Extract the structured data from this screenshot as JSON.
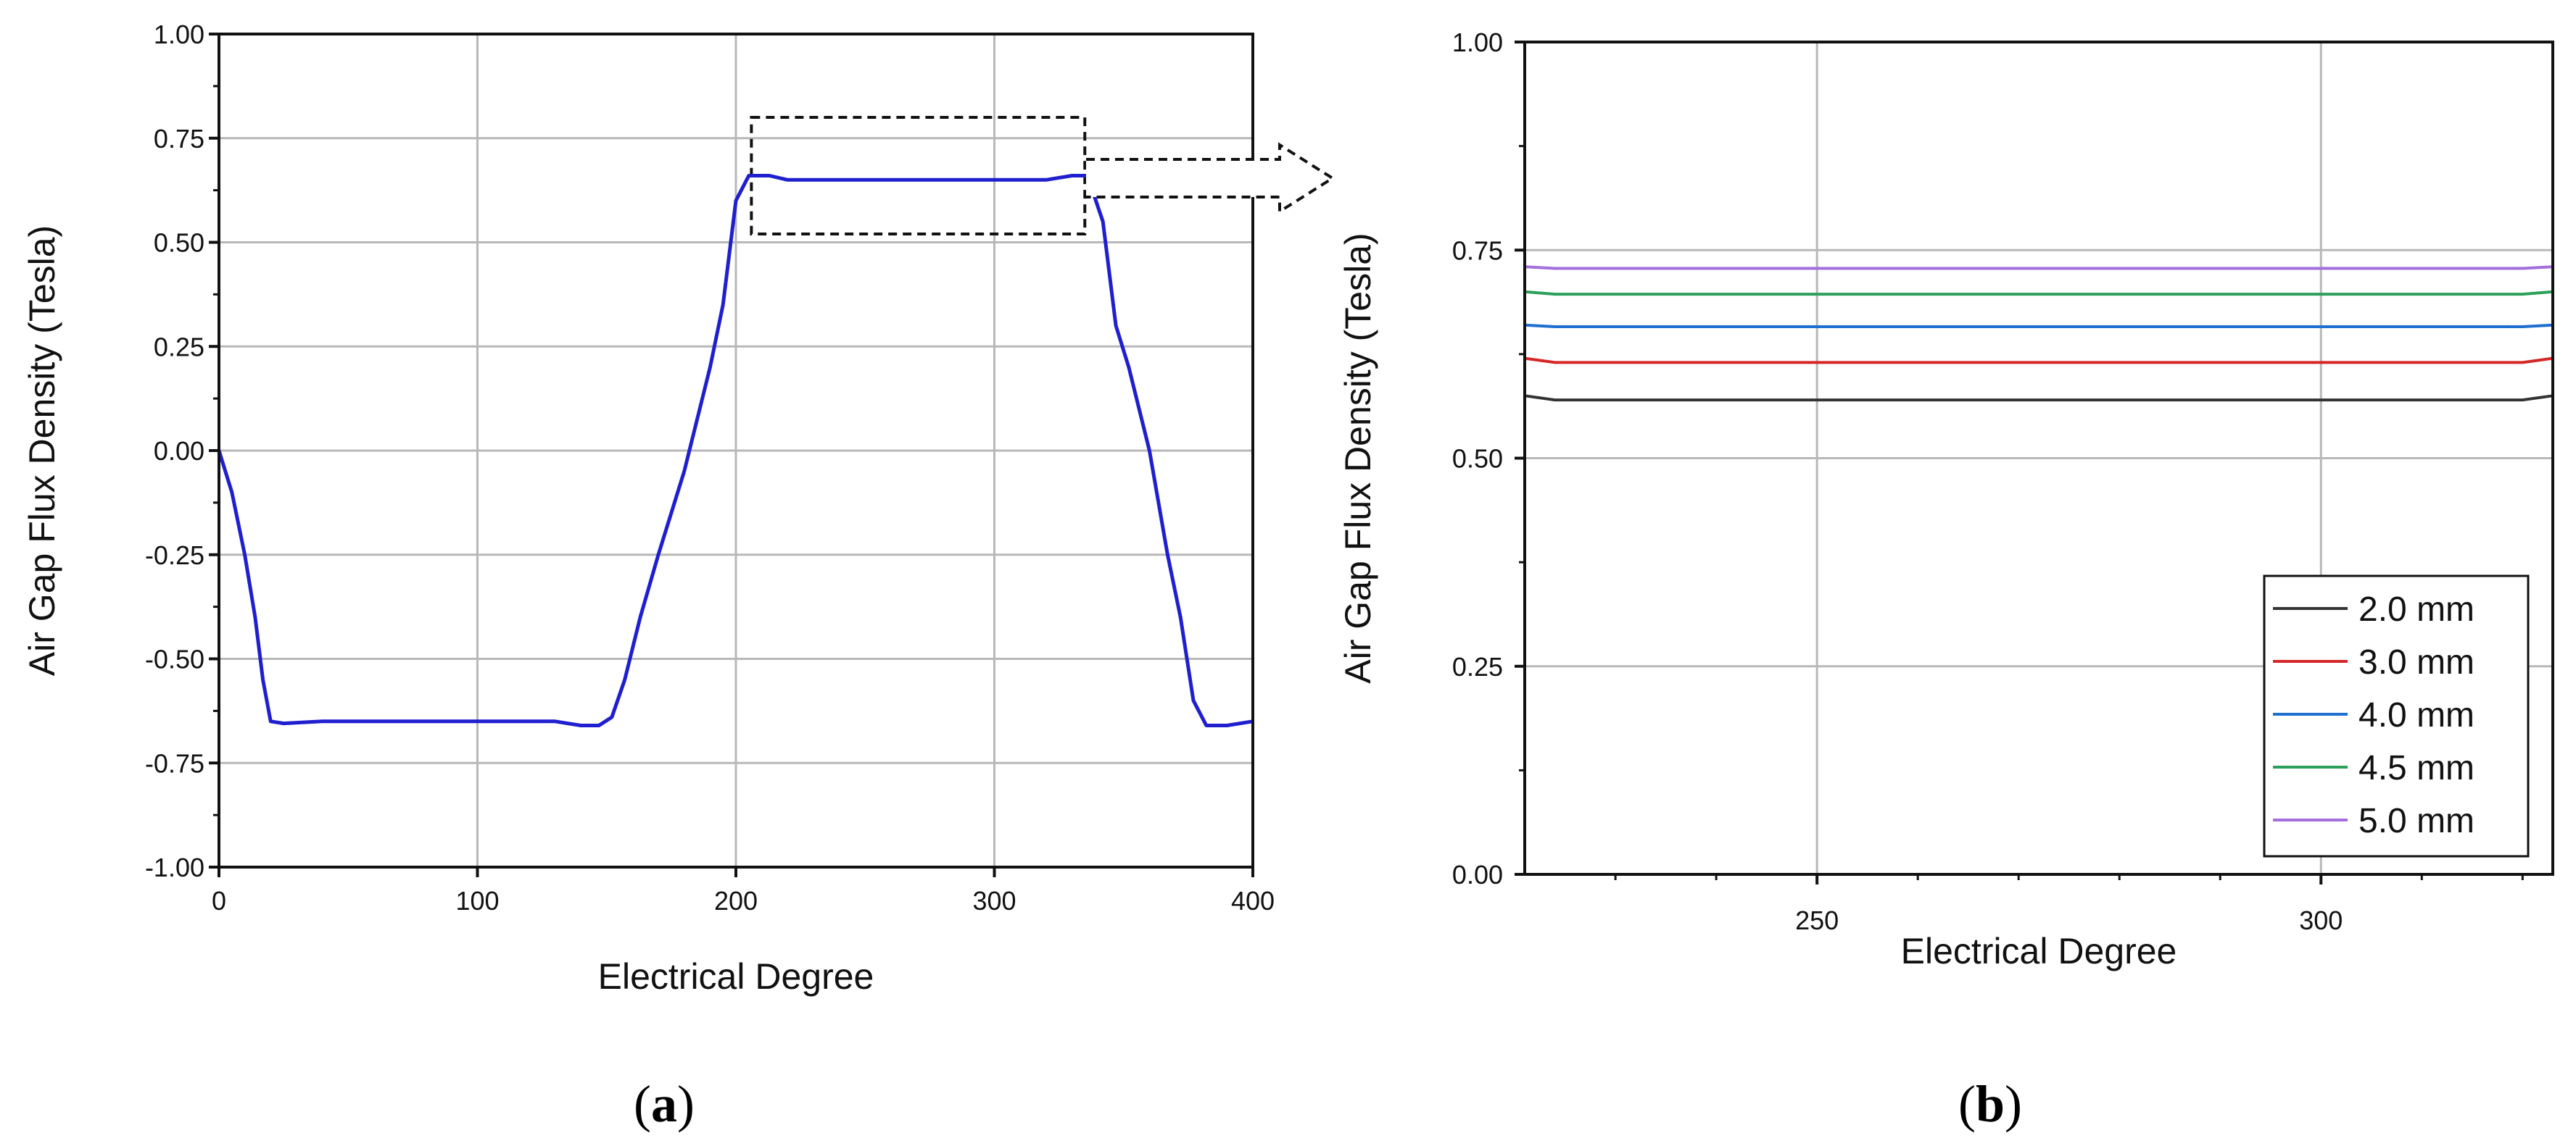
{
  "panels": {
    "a_label_open": "(",
    "a_label_letter": "a",
    "a_label_close": ")",
    "b_label_open": "(",
    "b_label_letter": "b",
    "b_label_close": ")"
  },
  "chart_data": [
    {
      "id": "a",
      "type": "line",
      "xlabel": "Electrical Degree",
      "ylabel": "Air Gap Flux Density (Tesla)",
      "xlim": [
        0,
        400
      ],
      "ylim": [
        -1.0,
        1.0
      ],
      "xticks": [
        0,
        100,
        200,
        300,
        400
      ],
      "xtick_labels": [
        "0",
        "100",
        "200",
        "300",
        "400"
      ],
      "yticks": [
        -1.0,
        -0.75,
        -0.5,
        -0.25,
        0.0,
        0.25,
        0.5,
        0.75,
        1.0
      ],
      "ytick_labels": [
        "-1.00",
        "-0.75",
        "-0.50",
        "-0.25",
        "0.00",
        "0.25",
        "0.50",
        "0.75",
        "1.00"
      ],
      "grid": true,
      "series": [
        {
          "color": "#1f1fcf",
          "x": [
            0,
            5,
            10,
            14,
            17,
            20,
            25,
            40,
            60,
            100,
            130,
            140,
            147,
            152,
            157,
            163,
            170,
            180,
            190,
            195,
            200,
            205,
            213,
            220,
            260,
            300,
            320,
            330,
            336,
            342,
            347,
            352,
            360,
            367,
            372,
            377,
            382,
            390,
            400
          ],
          "y": [
            0.0,
            -0.1,
            -0.25,
            -0.4,
            -0.55,
            -0.65,
            -0.655,
            -0.65,
            -0.65,
            -0.65,
            -0.65,
            -0.66,
            -0.66,
            -0.64,
            -0.55,
            -0.4,
            -0.25,
            -0.05,
            0.2,
            0.35,
            0.6,
            0.66,
            0.66,
            0.65,
            0.65,
            0.65,
            0.65,
            0.66,
            0.66,
            0.55,
            0.3,
            0.2,
            0.0,
            -0.25,
            -0.4,
            -0.6,
            -0.66,
            -0.66,
            -0.65
          ]
        }
      ],
      "zoom_box": {
        "x": [
          206,
          335
        ],
        "y": [
          0.52,
          0.8
        ]
      }
    },
    {
      "id": "b",
      "type": "line",
      "xlabel": "Electrical Degree",
      "ylabel": "Air Gap Flux Density (Tesla)",
      "xlim": [
        221,
        323
      ],
      "ylim": [
        0.0,
        1.0
      ],
      "xticks": [
        250,
        300
      ],
      "xtick_labels": [
        "250",
        "300"
      ],
      "yticks": [
        0.0,
        0.25,
        0.5,
        0.75,
        1.0
      ],
      "ytick_labels": [
        "0.00",
        "0.25",
        "0.50",
        "0.75",
        "1.00"
      ],
      "grid": true,
      "legend_position": "bottom-right",
      "series": [
        {
          "name": "2.0 mm",
          "color": "#333333",
          "x": [
            221,
            224,
            320,
            323
          ],
          "y": [
            0.575,
            0.57,
            0.57,
            0.575
          ]
        },
        {
          "name": "3.0 mm",
          "color": "#d62728",
          "x": [
            221,
            224,
            320,
            323
          ],
          "y": [
            0.62,
            0.615,
            0.615,
            0.62
          ]
        },
        {
          "name": "4.0 mm",
          "color": "#1f6fd0",
          "x": [
            221,
            224,
            320,
            323
          ],
          "y": [
            0.66,
            0.658,
            0.658,
            0.66
          ]
        },
        {
          "name": "4.5 mm",
          "color": "#2ca05a",
          "x": [
            221,
            224,
            320,
            323
          ],
          "y": [
            0.7,
            0.697,
            0.697,
            0.7
          ]
        },
        {
          "name": "5.0 mm",
          "color": "#a46fdc",
          "x": [
            221,
            224,
            320,
            323
          ],
          "y": [
            0.73,
            0.728,
            0.728,
            0.73
          ]
        }
      ]
    }
  ]
}
